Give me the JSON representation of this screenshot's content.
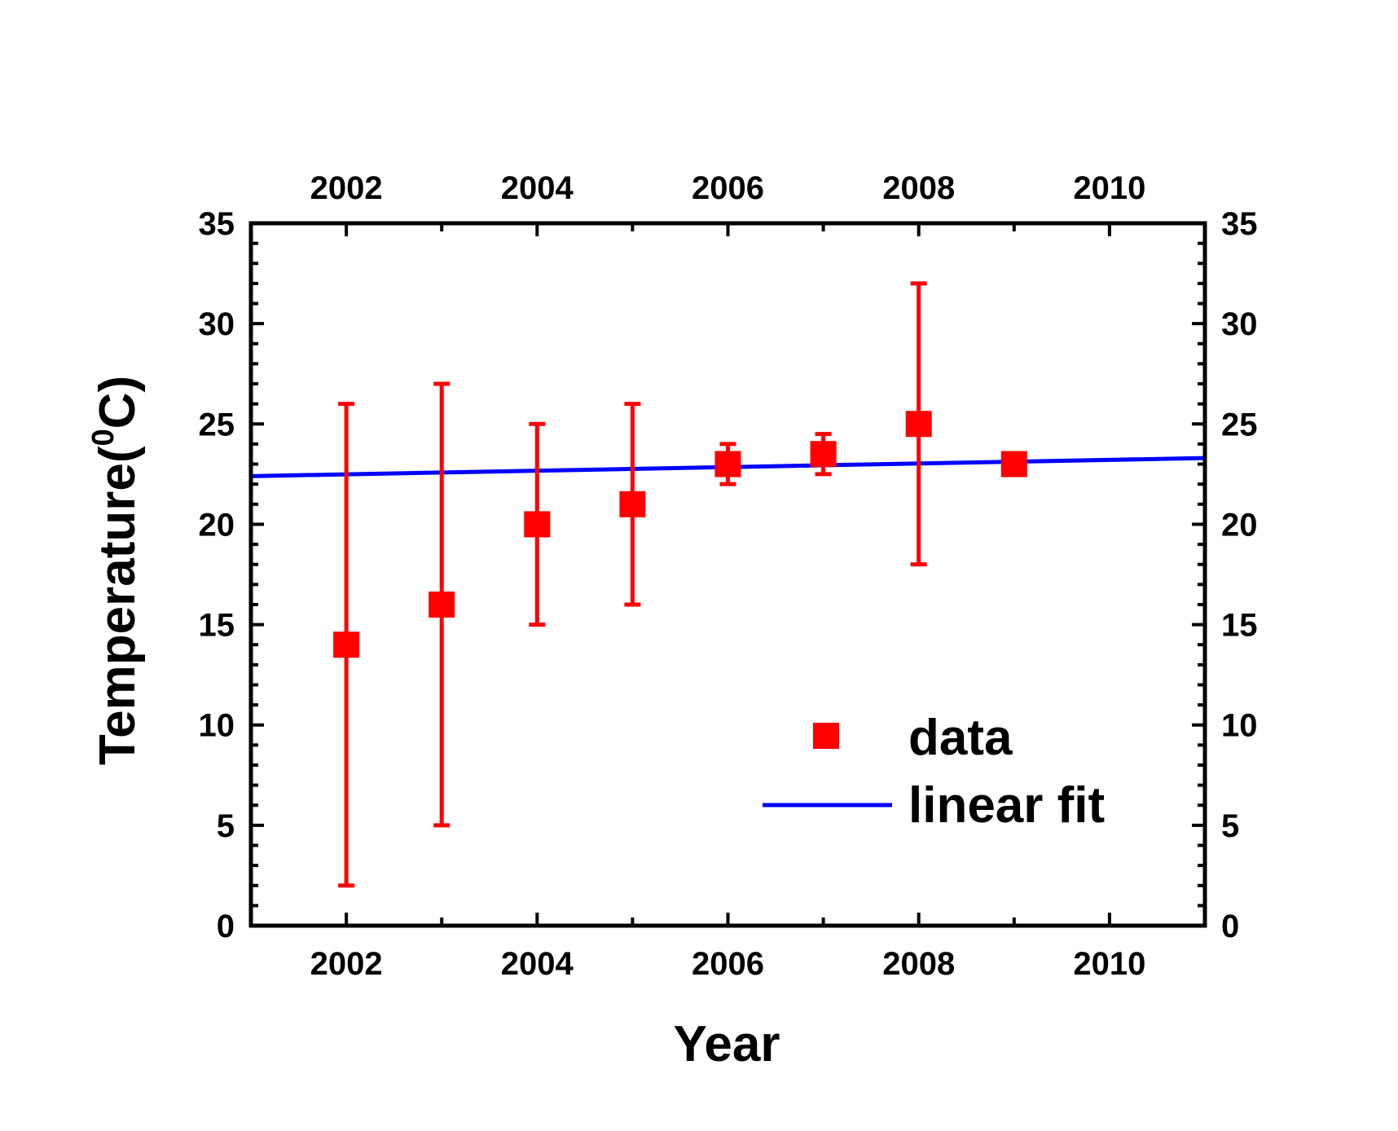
{
  "chart_data": {
    "type": "scatter",
    "xlabel": "Year",
    "ylabel": "Temperature(",
    "ylabel_sup": "0",
    "ylabel_tail": "C)",
    "xlim": [
      2001,
      2011
    ],
    "ylim": [
      0,
      35
    ],
    "x_ticks": [
      2002,
      2004,
      2006,
      2008,
      2010
    ],
    "x_minor_ticks": [
      2003,
      2005,
      2007,
      2009
    ],
    "y_ticks": [
      0,
      5,
      10,
      15,
      20,
      25,
      30,
      35
    ],
    "x_tick_labels": [
      "2002",
      "2004",
      "2006",
      "2008",
      "2010"
    ],
    "y_tick_labels": [
      "0",
      "5",
      "10",
      "15",
      "20",
      "25",
      "30",
      "35"
    ],
    "grid": false,
    "legend_position": "lower-right",
    "colors": {
      "data": "#ff0000",
      "fit": "#0000ff",
      "axis": "#000000"
    },
    "series": [
      {
        "name": "data",
        "kind": "scatter-errorbar",
        "points": [
          {
            "x": 2002,
            "y": 14,
            "ylow": 2,
            "yhigh": 26
          },
          {
            "x": 2003,
            "y": 16,
            "ylow": 5,
            "yhigh": 27
          },
          {
            "x": 2004,
            "y": 20,
            "ylow": 15,
            "yhigh": 25
          },
          {
            "x": 2005,
            "y": 21,
            "ylow": 16,
            "yhigh": 26
          },
          {
            "x": 2006,
            "y": 23,
            "ylow": 22,
            "yhigh": 24
          },
          {
            "x": 2007,
            "y": 23.5,
            "ylow": 22.5,
            "yhigh": 24.5
          },
          {
            "x": 2008,
            "y": 25,
            "ylow": 18,
            "yhigh": 32
          },
          {
            "x": 2009,
            "y": 23,
            "ylow": 22.5,
            "yhigh": 23.5
          }
        ]
      },
      {
        "name": "linear fit",
        "kind": "line",
        "x": [
          2001,
          2011
        ],
        "y": [
          22.4,
          23.3
        ]
      }
    ]
  }
}
